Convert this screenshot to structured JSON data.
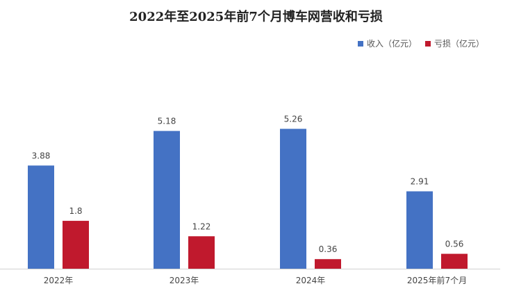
{
  "chart_data": {
    "type": "bar",
    "title": "2022年至2025年前7个月博车网营收和亏损",
    "xlabel": "",
    "ylabel": "",
    "categories": [
      "2022年",
      "2023年",
      "2024年",
      "2025年前7个月"
    ],
    "series": [
      {
        "name": "收入（亿元）",
        "color": "#4472C4",
        "values": [
          3.88,
          5.18,
          5.26,
          2.91
        ]
      },
      {
        "name": "亏损（亿元）",
        "color": "#C0192D",
        "values": [
          1.8,
          1.22,
          0.36,
          0.56
        ]
      }
    ],
    "ylim": [
      0,
      7
    ],
    "grid": false,
    "legend_position": "top-right"
  }
}
